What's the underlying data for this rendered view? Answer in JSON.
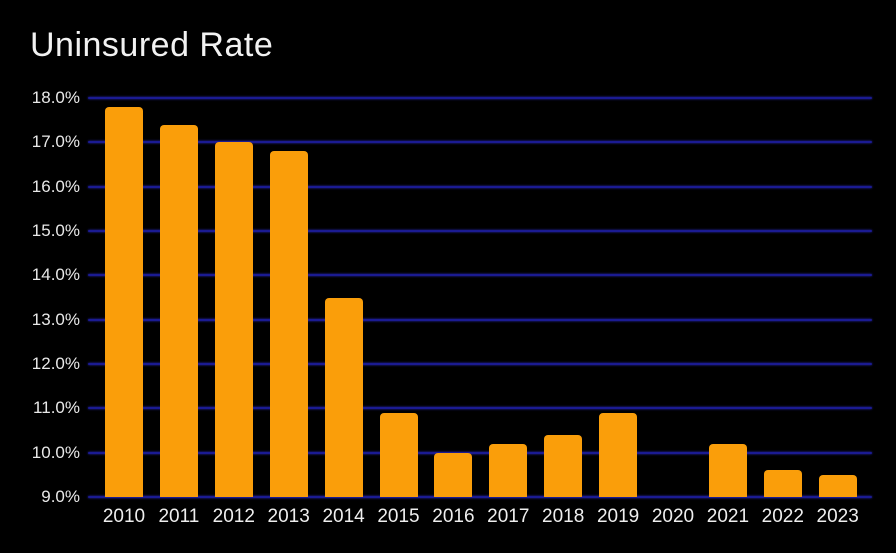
{
  "title": "Uninsured Rate",
  "colors": {
    "background": "#000000",
    "bar": "#FA9E0A",
    "gridline": "#1B1B92",
    "gridline_glow": "#2A2AC0",
    "title_text": "#F2F2F2",
    "axis_text": "#E8E8E8"
  },
  "chart_data": {
    "type": "bar",
    "title": "Uninsured Rate",
    "categories": [
      "2010",
      "2011",
      "2012",
      "2013",
      "2014",
      "2015",
      "2016",
      "2017",
      "2018",
      "2019",
      "2020",
      "2021",
      "2022",
      "2023"
    ],
    "values": [
      17.8,
      17.4,
      17.0,
      16.8,
      13.5,
      10.9,
      10.0,
      10.2,
      10.4,
      10.9,
      null,
      10.2,
      9.6,
      9.5
    ],
    "missing_categories": [
      "2020"
    ],
    "xlabel": "",
    "ylabel": "",
    "ylim": [
      9.0,
      18.0
    ],
    "ytick_step": 1.0,
    "ytick_labels": [
      "18.0%",
      "17.0%",
      "16.0%",
      "15.0%",
      "14.0%",
      "13.0%",
      "12.0%",
      "11.0%",
      "10.0%",
      "9.0%"
    ],
    "grid": true,
    "legend_position": "none",
    "bar_color": "#FA9E0A",
    "baseline": 9.0
  }
}
